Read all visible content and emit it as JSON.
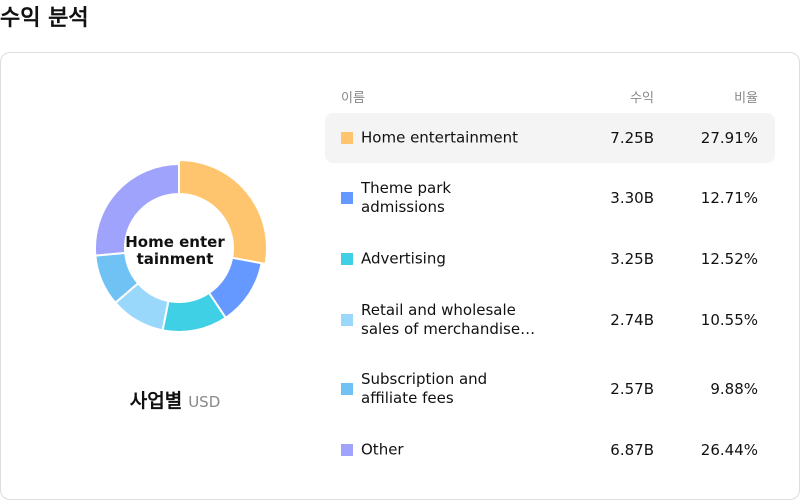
{
  "header": {
    "title": "수익 분석"
  },
  "chart_data": {
    "type": "donut",
    "subtitle": "사업별",
    "unit": "USD",
    "categories": [
      "Home entertainment",
      "Theme park admissions",
      "Advertising",
      "Retail and wholesale sales of merchandise…",
      "Subscription and affiliate fees",
      "Other"
    ],
    "values": [
      27.91,
      12.71,
      12.52,
      10.55,
      9.88,
      26.44
    ],
    "value_labels": [
      "27.91%",
      "12.71%",
      "12.52%",
      "10.55%",
      "9.88%",
      "26.44%"
    ],
    "colors": [
      "#ffc46e",
      "#6699ff",
      "#3fd0e6",
      "#99d8fb",
      "#70c2f5",
      "#a0a3fb"
    ],
    "selected": 0
  },
  "table": {
    "headers": [
      "이름",
      "수익",
      "비율"
    ],
    "revenue": [
      "7.25B",
      "3.30B",
      "3.25B",
      "2.74B",
      "2.57B",
      "6.87B"
    ]
  }
}
